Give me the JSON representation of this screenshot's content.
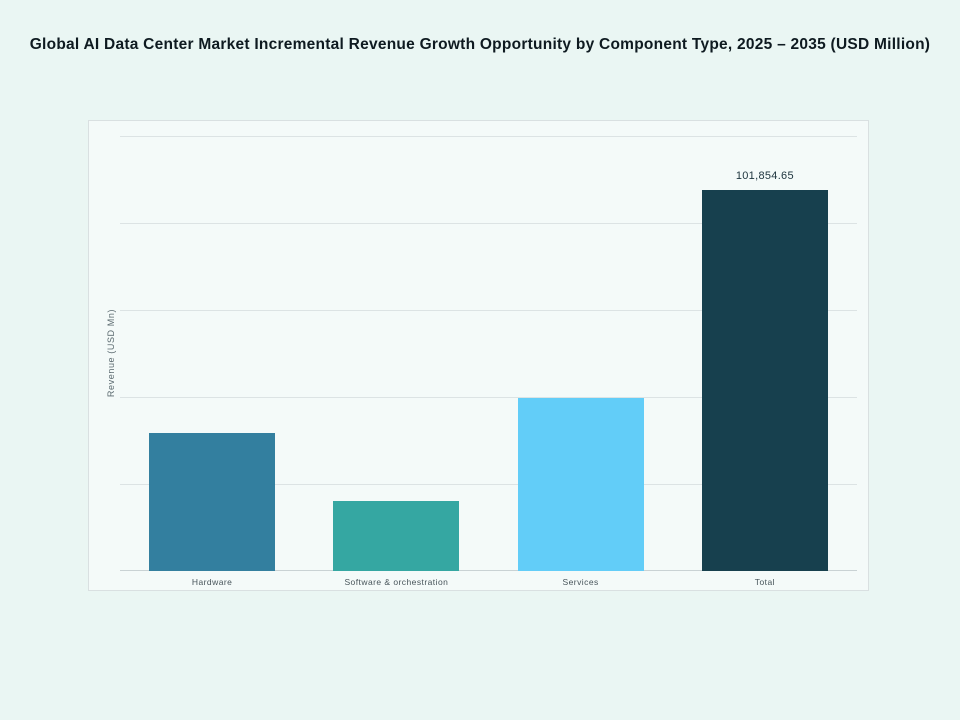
{
  "page": {
    "background": "#eaf6f3",
    "panel_background": "#f4faf9",
    "panel_border": "#d9e0e1"
  },
  "header": {
    "title": "Global AI Data Center Market Incremental Revenue Growth Opportunity by Component Type, 2025 – 2035 (USD Million)"
  },
  "chart_data": {
    "type": "bar",
    "title": "Global AI Data Center Market Incremental Revenue Growth Opportunity by Component Type, 2025 – 2035 (USD Million)",
    "xlabel": "",
    "ylabel": "Revenue (USD Mn)",
    "categories": [
      "Hardware",
      "Software & orchestration",
      "Services",
      "Total"
    ],
    "values": [
      36890,
      18710,
      46250,
      101854.65
    ],
    "data_labels": [
      "",
      "",
      "",
      "101,854.65"
    ],
    "bar_colors": [
      "#337f9f",
      "#35a7a2",
      "#62cdf8",
      "#17404e"
    ],
    "ylim": [
      0,
      120300
    ],
    "grid": true,
    "gridline_color": "#dce3e4",
    "legend": false
  }
}
